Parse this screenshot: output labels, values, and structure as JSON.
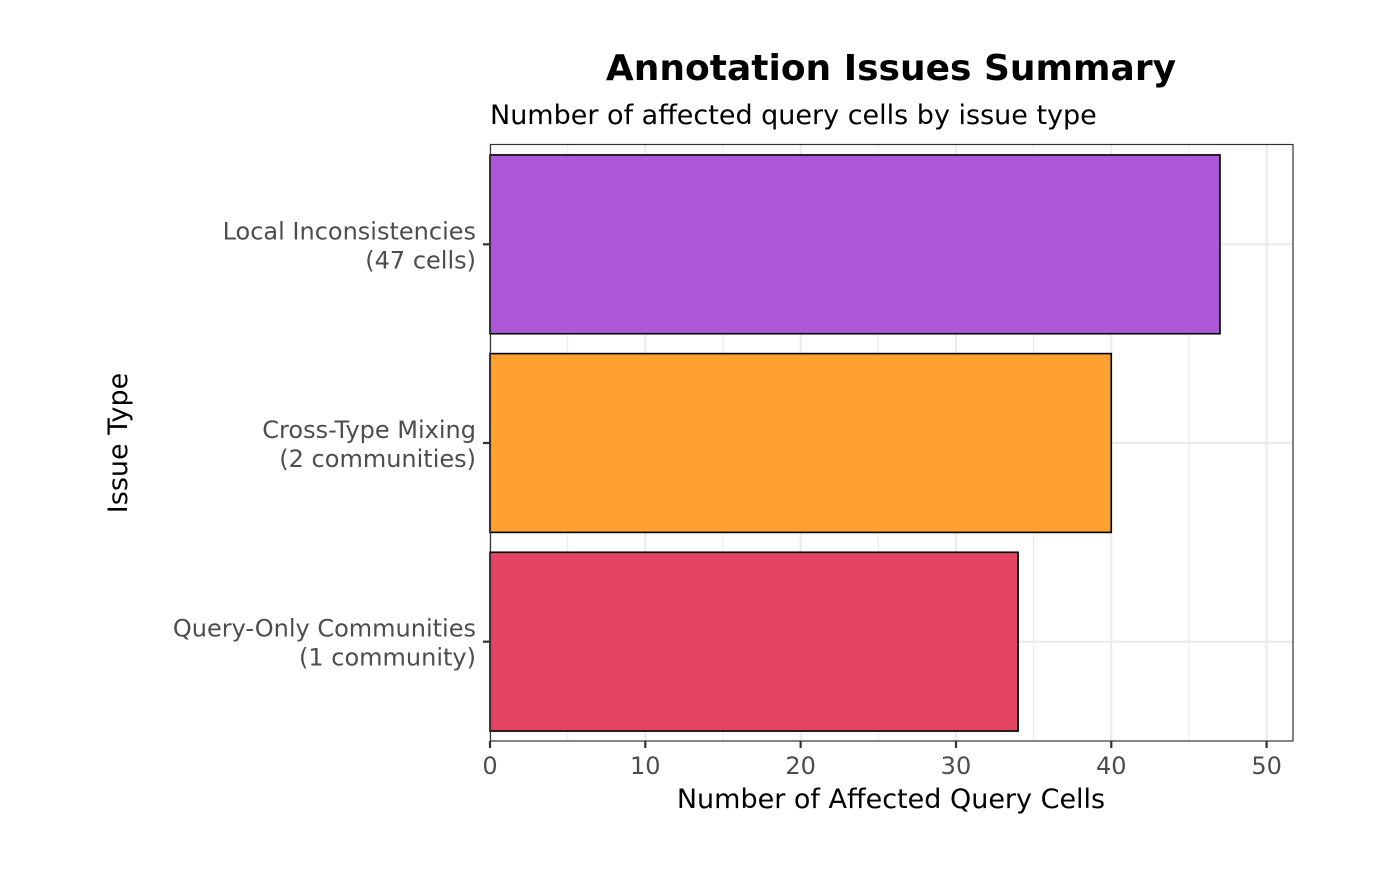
{
  "chart_data": {
    "type": "bar",
    "orientation": "horizontal",
    "title": "Annotation Issues Summary",
    "subtitle": "Number of affected query cells by issue type",
    "xlabel": "Number of Affected Query Cells",
    "ylabel": "Issue Type",
    "xlim": [
      0,
      51.7
    ],
    "x_ticks": [
      0,
      10,
      20,
      30,
      40,
      50
    ],
    "grid": true,
    "legend": "none",
    "categories": [
      {
        "line1": "Local Inconsistencies",
        "line2": "(47 cells)"
      },
      {
        "line1": "Cross-Type Mixing",
        "line2": "(2 communities)"
      },
      {
        "line1": "Query-Only Communities",
        "line2": "(1 community)"
      }
    ],
    "values": [
      47,
      40,
      34
    ],
    "colors": [
      "#ad58d9",
      "#ffa030",
      "#e24462"
    ]
  }
}
